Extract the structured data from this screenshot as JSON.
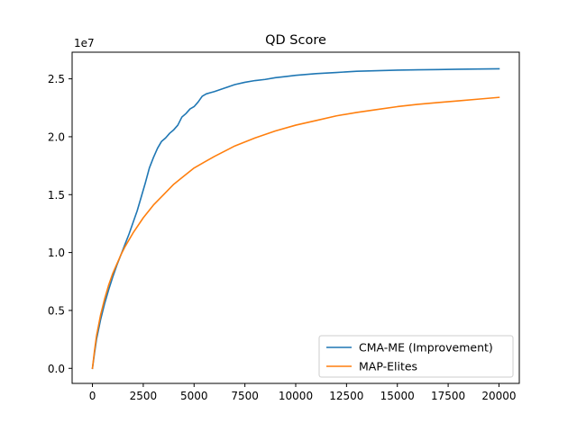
{
  "chart_data": {
    "type": "line",
    "title": "QD Score",
    "xlabel": "",
    "ylabel": "",
    "y_offset_label": "1e7",
    "xlim": [
      -1000,
      21000
    ],
    "ylim": [
      -1300000,
      27300000
    ],
    "x_ticks": [
      0,
      2500,
      5000,
      7500,
      10000,
      12500,
      15000,
      17500,
      20000
    ],
    "x_tick_labels": [
      "0",
      "2500",
      "5000",
      "7500",
      "10000",
      "12500",
      "15000",
      "17500",
      "20000"
    ],
    "y_ticks": [
      0,
      5000000,
      10000000,
      15000000,
      20000000,
      25000000
    ],
    "y_tick_labels": [
      "0.0",
      "0.5",
      "1.0",
      "1.5",
      "2.0",
      "2.5"
    ],
    "grid": false,
    "legend_position": "lower-right",
    "series": [
      {
        "name": "CMA-ME (Improvement)",
        "color": "#1f77b4",
        "x": [
          0,
          100,
          200,
          400,
          600,
          800,
          1000,
          1200,
          1400,
          1600,
          1800,
          2000,
          2200,
          2400,
          2600,
          2800,
          3000,
          3200,
          3400,
          3600,
          3800,
          4000,
          4200,
          4400,
          4600,
          4800,
          5000,
          5200,
          5400,
          5600,
          5800,
          6000,
          6500,
          7000,
          7500,
          8000,
          8500,
          9000,
          9500,
          10000,
          11000,
          12000,
          13000,
          14000,
          15000,
          16000,
          17000,
          18000,
          19000,
          20000
        ],
        "y": [
          0,
          1300000,
          2500000,
          4200000,
          5600000,
          6800000,
          7900000,
          8900000,
          9800000,
          10700000,
          11600000,
          12600000,
          13600000,
          14800000,
          16000000,
          17300000,
          18200000,
          19000000,
          19600000,
          19900000,
          20300000,
          20600000,
          21000000,
          21700000,
          22000000,
          22400000,
          22600000,
          23000000,
          23500000,
          23700000,
          23800000,
          23900000,
          24200000,
          24500000,
          24700000,
          24850000,
          24950000,
          25100000,
          25200000,
          25300000,
          25450000,
          25550000,
          25650000,
          25700000,
          25750000,
          25780000,
          25800000,
          25830000,
          25850000,
          25870000
        ]
      },
      {
        "name": "MAP-Elites",
        "color": "#ff7f0e",
        "x": [
          0,
          100,
          200,
          400,
          600,
          800,
          1000,
          1200,
          1400,
          1600,
          1800,
          2000,
          2500,
          3000,
          3500,
          4000,
          4500,
          5000,
          5500,
          6000,
          7000,
          8000,
          9000,
          10000,
          11000,
          12000,
          13000,
          14000,
          15000,
          16000,
          17000,
          18000,
          19000,
          20000
        ],
        "y": [
          0,
          1500000,
          2800000,
          4600000,
          6000000,
          7200000,
          8200000,
          9000000,
          9800000,
          10500000,
          11100000,
          11700000,
          13000000,
          14100000,
          15000000,
          15900000,
          16600000,
          17300000,
          17800000,
          18300000,
          19200000,
          19900000,
          20500000,
          21000000,
          21400000,
          21800000,
          22100000,
          22350000,
          22600000,
          22800000,
          22950000,
          23100000,
          23250000,
          23400000
        ]
      }
    ]
  }
}
